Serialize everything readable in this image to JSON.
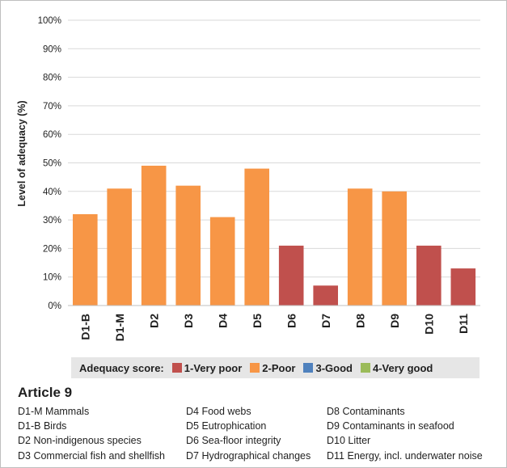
{
  "chart_data": {
    "type": "bar",
    "ylabel": "Level of adequacy (%)",
    "ylim": [
      0,
      100
    ],
    "yticks": [
      "0%",
      "10%",
      "20%",
      "30%",
      "40%",
      "50%",
      "60%",
      "70%",
      "80%",
      "90%",
      "100%"
    ],
    "grid": true,
    "categories": [
      "D1-B",
      "D1-M",
      "D2",
      "D3",
      "D4",
      "D5",
      "D6",
      "D7",
      "D8",
      "D9",
      "D10",
      "D11"
    ],
    "values": [
      32,
      41,
      49,
      42,
      31,
      48,
      21,
      7,
      41,
      40,
      21,
      13
    ],
    "scores": [
      "2-Poor",
      "2-Poor",
      "2-Poor",
      "2-Poor",
      "2-Poor",
      "2-Poor",
      "1-Very poor",
      "1-Very poor",
      "2-Poor",
      "2-Poor",
      "1-Very poor",
      "1-Very poor"
    ],
    "legend": {
      "title": "Adequacy score:",
      "placement": "bottom",
      "items": [
        {
          "label": "1-Very poor",
          "color": "#c0504d"
        },
        {
          "label": "2-Poor",
          "color": "#f79646"
        },
        {
          "label": "3-Good",
          "color": "#4f81bd"
        },
        {
          "label": "4-Very good",
          "color": "#9bbb59"
        }
      ]
    }
  },
  "article": {
    "title": "Article 9",
    "key_columns": [
      [
        "D1-M Mammals",
        "D1-B Birds",
        "D2 Non-indigenous species",
        "D3 Commercial fish and shellfish"
      ],
      [
        "D4 Food webs",
        "D5 Eutrophication",
        "D6 Sea-floor integrity",
        "D7 Hydrographical changes"
      ],
      [
        "D8 Contaminants",
        "D9 Contaminants in seafood",
        "D10 Litter",
        "D11 Energy, incl. underwater noise"
      ]
    ]
  }
}
